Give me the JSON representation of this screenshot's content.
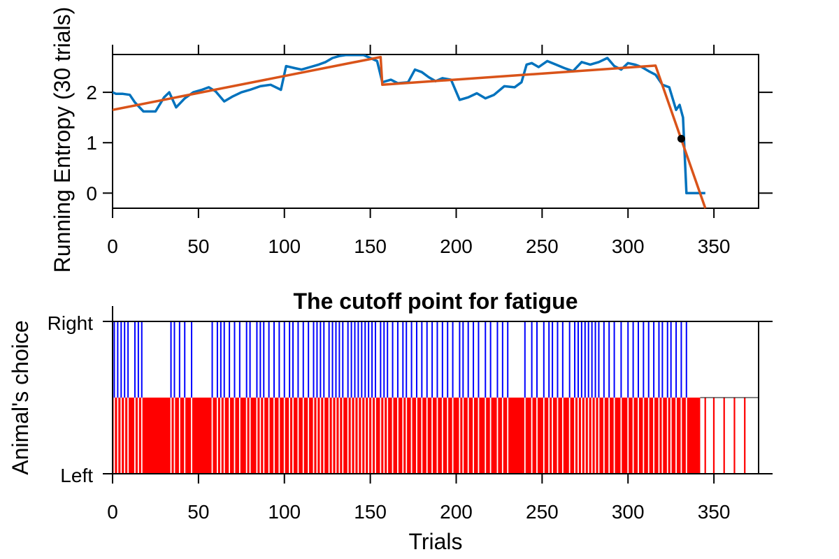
{
  "colors": {
    "entropy": "#0072BD",
    "fit": "#D95319",
    "cutoff": "#000000",
    "right_choice": "#0000FF",
    "left_choice": "#FF0000",
    "axis": "#000000"
  },
  "chart_data": [
    {
      "type": "line",
      "title": "",
      "xlabel": "",
      "ylabel": "Running Entropy (30 trials)",
      "xlim": [
        0,
        376
      ],
      "ylim": [
        -0.3,
        2.75
      ],
      "xticks": [
        0,
        50,
        100,
        150,
        200,
        250,
        300,
        350
      ],
      "yticks": [
        0,
        1,
        2
      ],
      "xtick_labels": [
        "0",
        "50",
        "100",
        "150",
        "200",
        "250",
        "300",
        "350"
      ],
      "ytick_labels": [
        "0",
        "1",
        "2"
      ],
      "grid": false,
      "series": [
        {
          "style": "solid",
          "x": [
            0,
            2,
            6,
            10,
            13,
            18,
            25,
            30,
            33,
            37,
            42,
            47,
            52,
            56,
            60,
            65,
            70,
            75,
            80,
            86,
            92,
            98,
            101,
            106,
            110,
            115,
            120,
            124,
            128,
            132,
            136,
            140,
            146,
            150,
            154,
            157,
            162,
            166,
            172,
            176,
            180,
            184,
            188,
            192,
            197,
            202,
            207,
            212,
            217,
            222,
            228,
            234,
            238,
            241,
            244,
            248,
            253,
            258,
            263,
            268,
            273,
            278,
            283,
            288,
            292,
            296,
            300,
            304,
            308,
            312,
            316,
            320,
            324,
            328,
            330,
            332,
            334,
            336,
            340,
            345
          ],
          "y": [
            2.0,
            1.97,
            1.97,
            1.95,
            1.8,
            1.62,
            1.62,
            1.9,
            2.0,
            1.7,
            1.88,
            2.0,
            2.05,
            2.1,
            2.02,
            1.82,
            1.92,
            2.0,
            2.05,
            2.12,
            2.15,
            2.05,
            2.52,
            2.48,
            2.45,
            2.5,
            2.55,
            2.6,
            2.68,
            2.72,
            2.74,
            2.74,
            2.74,
            2.68,
            2.62,
            2.2,
            2.25,
            2.18,
            2.2,
            2.45,
            2.4,
            2.3,
            2.22,
            2.28,
            2.25,
            1.85,
            1.9,
            1.98,
            1.88,
            1.95,
            2.12,
            2.1,
            2.2,
            2.55,
            2.58,
            2.5,
            2.62,
            2.55,
            2.48,
            2.42,
            2.6,
            2.55,
            2.6,
            2.68,
            2.52,
            2.45,
            2.58,
            2.55,
            2.5,
            2.42,
            2.35,
            2.15,
            2.1,
            1.65,
            1.75,
            1.5,
            0.0,
            0.0,
            0.0,
            0.0
          ]
        },
        {
          "style": "solid",
          "x": [
            0,
            156,
            157,
            316,
            345
          ],
          "y": [
            1.65,
            2.7,
            2.15,
            2.53,
            -0.3
          ]
        }
      ],
      "points": [
        {
          "x": 331,
          "y": 1.08
        }
      ]
    },
    {
      "type": "bar",
      "title": "The cutoff point for fatigue",
      "xlabel": "Trials",
      "ylabel": "Animal's choice",
      "xlim": [
        0,
        376
      ],
      "xticks": [
        0,
        50,
        100,
        150,
        200,
        250,
        300,
        350
      ],
      "xtick_labels": [
        "0",
        "50",
        "100",
        "150",
        "200",
        "250",
        "300",
        "350"
      ],
      "ytick_labels": [
        "Right",
        "Left"
      ],
      "right_trials": [
        1,
        3,
        5,
        7,
        9,
        13,
        15,
        17,
        34,
        36,
        39,
        42,
        46,
        58,
        61,
        63,
        65,
        68,
        71,
        74,
        78,
        80,
        84,
        86,
        88,
        91,
        94,
        97,
        100,
        103,
        105,
        108,
        111,
        114,
        117,
        119,
        121,
        123,
        126,
        128,
        130,
        132,
        134,
        137,
        139,
        141,
        143,
        145,
        147,
        149,
        151,
        153,
        156,
        158,
        160,
        163,
        166,
        169,
        171,
        174,
        177,
        180,
        183,
        186,
        189,
        192,
        195,
        198,
        202,
        204,
        207,
        210,
        213,
        217,
        220,
        224,
        227,
        230,
        240,
        244,
        247,
        251,
        254,
        256,
        259,
        262,
        266,
        269,
        271,
        273,
        275,
        277,
        279,
        281,
        283,
        286,
        289,
        292,
        296,
        300,
        303,
        306,
        309,
        312,
        315,
        318,
        320,
        323,
        325,
        328,
        331,
        334
      ],
      "left_end_dense": 342,
      "left_extra": [
        345,
        350,
        356,
        362,
        368
      ]
    }
  ]
}
